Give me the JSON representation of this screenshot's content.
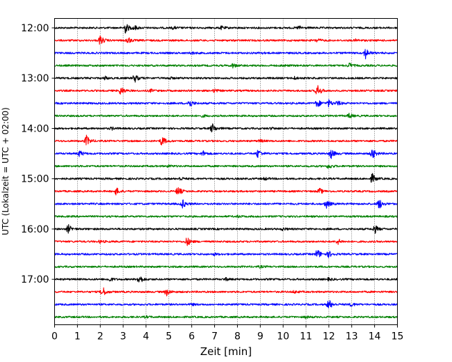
{
  "chart_data": {
    "type": "line",
    "title": "",
    "xlabel": "Zeit  [min]",
    "ylabel": "UTC (Lokalzeit = UTC + 02:00)",
    "xlim": [
      0,
      15
    ],
    "x_ticks": [
      0,
      1,
      2,
      3,
      4,
      5,
      6,
      7,
      8,
      9,
      10,
      11,
      12,
      13,
      14,
      15
    ],
    "y_tick_labels": [
      "12:00",
      "13:00",
      "14:00",
      "15:00",
      "16:00",
      "17:00"
    ],
    "grid": "vertical dotted",
    "trace_interval_minutes": 15,
    "color_cycle": [
      "#000000",
      "#ff0000",
      "#0000ff",
      "#008000"
    ],
    "traces": [
      {
        "start": "12:00",
        "color": "#000000",
        "events": [
          [
            3.1,
            0.9
          ],
          [
            3.5,
            0.35
          ],
          [
            5.2,
            0.2
          ],
          [
            7.3,
            0.25
          ],
          [
            10.7,
            0.3
          ]
        ]
      },
      {
        "start": "12:15",
        "color": "#ff0000",
        "events": [
          [
            2.0,
            0.8
          ],
          [
            3.2,
            0.6
          ],
          [
            11.5,
            0.3
          ],
          [
            13.2,
            0.2
          ]
        ]
      },
      {
        "start": "12:30",
        "color": "#0000ff",
        "events": [
          [
            13.6,
            0.9
          ],
          [
            6.0,
            0.2
          ],
          [
            9.0,
            0.15
          ]
        ]
      },
      {
        "start": "12:45",
        "color": "#008000",
        "events": [
          [
            7.8,
            0.35
          ],
          [
            12.9,
            0.4
          ],
          [
            10.0,
            0.15
          ]
        ]
      },
      {
        "start": "13:00",
        "color": "#000000",
        "events": [
          [
            3.5,
            0.7
          ],
          [
            2.2,
            0.25
          ],
          [
            5.0,
            0.2
          ],
          [
            10.5,
            0.2
          ]
        ]
      },
      {
        "start": "13:15",
        "color": "#ff0000",
        "events": [
          [
            2.9,
            0.7
          ],
          [
            11.5,
            1.0
          ],
          [
            7.0,
            0.25
          ],
          [
            4.2,
            0.2
          ]
        ]
      },
      {
        "start": "13:30",
        "color": "#0000ff",
        "events": [
          [
            5.9,
            0.7
          ],
          [
            11.5,
            0.7
          ],
          [
            12.0,
            0.55
          ],
          [
            12.4,
            0.35
          ]
        ]
      },
      {
        "start": "13:45",
        "color": "#008000",
        "events": [
          [
            12.9,
            0.4
          ],
          [
            6.5,
            0.15
          ]
        ]
      },
      {
        "start": "14:00",
        "color": "#000000",
        "events": [
          [
            6.9,
            0.8
          ],
          [
            2.5,
            0.2
          ],
          [
            9.5,
            0.15
          ]
        ]
      },
      {
        "start": "14:15",
        "color": "#ff0000",
        "events": [
          [
            1.4,
            0.9
          ],
          [
            4.7,
            0.8
          ],
          [
            9.0,
            0.2
          ]
        ]
      },
      {
        "start": "14:30",
        "color": "#0000ff",
        "events": [
          [
            1.1,
            0.5
          ],
          [
            6.5,
            0.4
          ],
          [
            8.9,
            0.7
          ],
          [
            12.1,
            0.8
          ],
          [
            13.9,
            0.95
          ]
        ]
      },
      {
        "start": "14:45",
        "color": "#008000",
        "events": [
          [
            12.0,
            0.4
          ],
          [
            5.0,
            0.15
          ]
        ]
      },
      {
        "start": "15:00",
        "color": "#000000",
        "events": [
          [
            13.9,
            0.8
          ],
          [
            5.5,
            0.25
          ],
          [
            9.2,
            0.2
          ]
        ]
      },
      {
        "start": "15:15",
        "color": "#ff0000",
        "events": [
          [
            2.7,
            0.6
          ],
          [
            5.4,
            0.75
          ],
          [
            11.6,
            0.45
          ]
        ]
      },
      {
        "start": "15:30",
        "color": "#0000ff",
        "events": [
          [
            5.6,
            0.7
          ],
          [
            11.9,
            0.7
          ],
          [
            14.2,
            0.9
          ]
        ]
      },
      {
        "start": "15:45",
        "color": "#008000",
        "events": [
          [
            8.0,
            0.15
          ]
        ]
      },
      {
        "start": "16:00",
        "color": "#000000",
        "events": [
          [
            0.6,
            0.7
          ],
          [
            14.0,
            0.75
          ],
          [
            10.0,
            0.2
          ]
        ]
      },
      {
        "start": "16:15",
        "color": "#ff0000",
        "events": [
          [
            5.8,
            0.75
          ],
          [
            12.4,
            0.45
          ],
          [
            2.0,
            0.2
          ]
        ]
      },
      {
        "start": "16:30",
        "color": "#0000ff",
        "events": [
          [
            11.5,
            0.85
          ],
          [
            12.0,
            0.5
          ],
          [
            7.0,
            0.15
          ]
        ]
      },
      {
        "start": "16:45",
        "color": "#008000",
        "events": [
          [
            9.0,
            0.15
          ]
        ]
      },
      {
        "start": "17:00",
        "color": "#000000",
        "events": [
          [
            3.7,
            0.8
          ],
          [
            2.4,
            0.35
          ],
          [
            7.5,
            0.2
          ],
          [
            12.0,
            0.2
          ]
        ]
      },
      {
        "start": "17:15",
        "color": "#ff0000",
        "events": [
          [
            2.1,
            0.85
          ],
          [
            4.9,
            0.6
          ],
          [
            10.5,
            0.2
          ]
        ]
      },
      {
        "start": "17:30",
        "color": "#0000ff",
        "events": [
          [
            12.0,
            0.85
          ],
          [
            13.0,
            0.3
          ],
          [
            6.0,
            0.15
          ]
        ]
      },
      {
        "start": "17:45",
        "color": "#008000",
        "events": [
          [
            4.0,
            0.15
          ],
          [
            11.0,
            0.15
          ]
        ]
      }
    ]
  }
}
